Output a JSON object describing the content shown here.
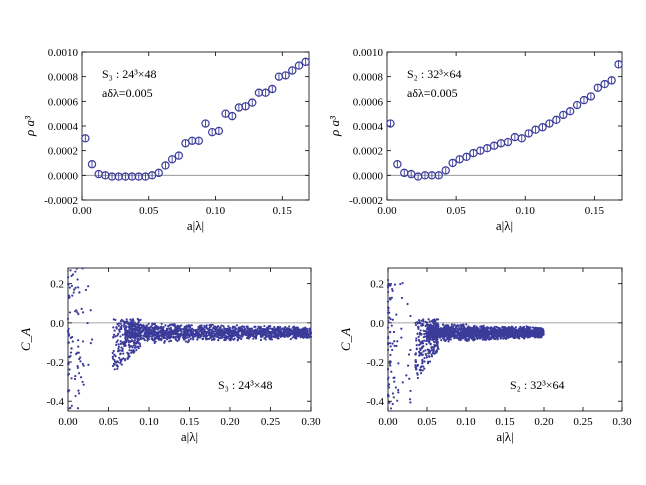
{
  "chart_data": [
    {
      "type": "scatter",
      "panel": "rho-S3",
      "marker": "open-circle-errorbar",
      "color": "#3b3b9a",
      "xlabel": "a|λ|",
      "ylabel": "ρ a³",
      "annotation": [
        "S₃ : 24³×48",
        "aδλ=0.005"
      ],
      "xlim": [
        0.0,
        0.17
      ],
      "ylim": [
        -0.0002,
        0.001
      ],
      "xticks": [
        "0.00",
        "0.05",
        "0.10",
        "0.15"
      ],
      "yticks": [
        "-0.0002",
        "0.0000",
        "0.0002",
        "0.0004",
        "0.0006",
        "0.0008",
        "0.0010"
      ],
      "reference_line": 0.0,
      "series": [
        {
          "x": [
            0.0025,
            0.0075,
            0.0125,
            0.0175,
            0.0225,
            0.0275,
            0.0325,
            0.0375,
            0.0425,
            0.0475,
            0.0525,
            0.0575,
            0.0625,
            0.0675,
            0.0725,
            0.0775,
            0.0825,
            0.0875,
            0.0925,
            0.0975,
            0.1025,
            0.1075,
            0.1125,
            0.1175,
            0.1225,
            0.1275,
            0.1325,
            0.1375,
            0.1425,
            0.1475,
            0.1525,
            0.1575,
            0.1625,
            0.1675
          ],
          "y": [
            0.0003,
            9e-05,
            1e-05,
            0.0,
            -1e-05,
            -1e-05,
            -1e-05,
            -1e-05,
            -1e-05,
            -1e-05,
            0.0,
            2e-05,
            8e-05,
            0.00013,
            0.00016,
            0.00026,
            0.00028,
            0.00028,
            0.00042,
            0.00035,
            0.00036,
            0.0005,
            0.00048,
            0.00055,
            0.00056,
            0.00059,
            0.00067,
            0.00067,
            0.0007,
            0.0008,
            0.00081,
            0.00085,
            0.00089,
            0.00092
          ]
        }
      ]
    },
    {
      "type": "scatter",
      "panel": "rho-S2",
      "marker": "open-circle-errorbar",
      "color": "#3b3b9a",
      "xlabel": "a|λ|",
      "ylabel": "ρ a³",
      "annotation": [
        "S₂ : 32³×64",
        "aδλ=0.005"
      ],
      "xlim": [
        0.0,
        0.17
      ],
      "ylim": [
        -0.0002,
        0.001
      ],
      "xticks": [
        "0.00",
        "0.05",
        "0.10",
        "0.15"
      ],
      "yticks": [
        "-0.0002",
        "0.0000",
        "0.0002",
        "0.0004",
        "0.0006",
        "0.0008",
        "0.0010"
      ],
      "reference_line": 0.0,
      "series": [
        {
          "x": [
            0.0025,
            0.0075,
            0.0125,
            0.0175,
            0.0225,
            0.0275,
            0.0325,
            0.0375,
            0.0425,
            0.0475,
            0.0525,
            0.0575,
            0.0625,
            0.0675,
            0.0725,
            0.0775,
            0.0825,
            0.0875,
            0.0925,
            0.0975,
            0.1025,
            0.1075,
            0.1125,
            0.1175,
            0.1225,
            0.1275,
            0.1325,
            0.1375,
            0.1425,
            0.1475,
            0.1525,
            0.1575,
            0.1625,
            0.1675
          ],
          "y": [
            0.00042,
            9e-05,
            2e-05,
            1e-05,
            -1e-05,
            0.0,
            0.0,
            0.0,
            4e-05,
            0.0001,
            0.00013,
            0.00015,
            0.00018,
            0.0002,
            0.00022,
            0.00024,
            0.00026,
            0.00027,
            0.00031,
            0.0003,
            0.00034,
            0.00037,
            0.00039,
            0.00042,
            0.00045,
            0.00049,
            0.00052,
            0.00057,
            0.00061,
            0.00064,
            0.00071,
            0.00074,
            0.00077,
            0.0009
          ]
        }
      ]
    },
    {
      "type": "scatter",
      "panel": "CA-S3",
      "marker": "dot",
      "color": "#3b3b9a",
      "xlabel": "a|λ|",
      "ylabel": "C_A",
      "annotation": [
        "S₃ : 24³×48"
      ],
      "xlim": [
        0.0,
        0.3
      ],
      "ylim": [
        -0.45,
        0.28
      ],
      "xticks": [
        "0.00",
        "0.05",
        "0.10",
        "0.15",
        "0.20",
        "0.25",
        "0.30"
      ],
      "yticks": [
        "-0.4",
        "-0.2",
        "0.0",
        "0.2"
      ],
      "reference_line": 0.0,
      "point_cloud": {
        "spike_x_range": [
          0.0,
          0.03
        ],
        "spike_y_range": [
          -0.44,
          0.28
        ],
        "ramp_x_range": [
          0.055,
          0.09
        ],
        "ramp_y_range": [
          -0.26,
          0.02
        ],
        "band_x_range": [
          0.07,
          0.3
        ],
        "band_center": -0.05,
        "band_half_width_start": 0.06,
        "band_half_width_end": 0.03
      }
    },
    {
      "type": "scatter",
      "panel": "CA-S2",
      "marker": "dot",
      "color": "#3b3b9a",
      "xlabel": "a|λ|",
      "ylabel": "C_A",
      "annotation": [
        "S₂ : 32³×64"
      ],
      "xlim": [
        0.0,
        0.3
      ],
      "ylim": [
        -0.45,
        0.28
      ],
      "xticks": [
        "0.00",
        "0.05",
        "0.10",
        "0.15",
        "0.20",
        "0.25",
        "0.30"
      ],
      "yticks": [
        "-0.4",
        "-0.2",
        "0.0",
        "0.2"
      ],
      "reference_line": 0.0,
      "point_cloud": {
        "spike_x_range": [
          0.0,
          0.03
        ],
        "spike_y_range": [
          -0.44,
          0.22
        ],
        "ramp_x_range": [
          0.035,
          0.065
        ],
        "ramp_y_range": [
          -0.3,
          0.02
        ],
        "band_x_range": [
          0.05,
          0.2
        ],
        "band_center": -0.05,
        "band_half_width_start": 0.05,
        "band_half_width_end": 0.03
      }
    }
  ]
}
